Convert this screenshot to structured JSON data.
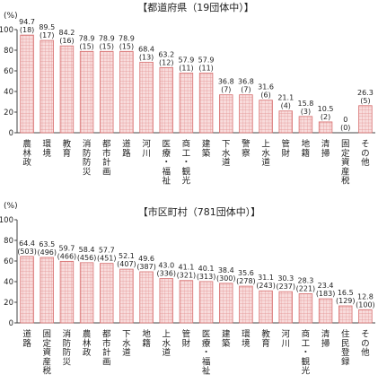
{
  "chart_data": [
    {
      "type": "bar",
      "title": "【都道府県（19団体中）】",
      "ylabel": "(%)",
      "ylim": [
        0,
        100
      ],
      "yticks": [
        0,
        20,
        40,
        60,
        80,
        100
      ],
      "categories": [
        "農林政",
        "環境",
        "教育",
        "消防防災",
        "都市計画",
        "道路",
        "河川",
        "医療・福祉",
        "商工・観光",
        "建築",
        "下水道",
        "警察",
        "上水道",
        "管財",
        "地籍",
        "清掃",
        "固定資産税",
        "その他"
      ],
      "values": [
        94.7,
        89.5,
        84.2,
        78.9,
        78.9,
        78.9,
        68.4,
        63.2,
        57.9,
        57.9,
        36.8,
        36.8,
        31.6,
        21.1,
        15.8,
        10.5,
        0,
        26.3
      ],
      "value_labels": [
        "94.7",
        "89.5",
        "84.2",
        "78.9",
        "78.9",
        "78.9",
        "68.4",
        "63.2",
        "57.9",
        "57.9",
        "36.8",
        "36.8",
        "31.6",
        "21.1",
        "15.8",
        "10.5",
        "0",
        "26.3"
      ],
      "counts": [
        "(18)",
        "(17)",
        "(16)",
        "(15)",
        "(15)",
        "(15)",
        "(13)",
        "(12)",
        "(11)",
        "(11)",
        "(7)",
        "(7)",
        "(6)",
        "(4)",
        "(3)",
        "(2)",
        "(0)",
        "(5)"
      ],
      "grid": false,
      "bar_color": "#e89494",
      "bar_fill": "#f6d2d2"
    },
    {
      "type": "bar",
      "title": "【市区町村（781団体中）】",
      "ylabel": "(%)",
      "ylim": [
        0,
        100
      ],
      "yticks": [
        0,
        20,
        40,
        60,
        80,
        100
      ],
      "categories": [
        "道路",
        "固定資産税",
        "消防防災",
        "農林政",
        "都市計画",
        "下水道",
        "地籍",
        "上水道",
        "管財",
        "医療・福祉",
        "建築",
        "環境",
        "教育",
        "河川",
        "商工・観光",
        "清掃",
        "住民登録",
        "その他"
      ],
      "values": [
        64.4,
        63.5,
        59.7,
        58.4,
        57.7,
        52.1,
        49.6,
        43.0,
        41.1,
        40.1,
        38.4,
        35.6,
        31.1,
        30.3,
        28.3,
        23.4,
        16.5,
        12.8
      ],
      "value_labels": [
        "64.4",
        "63.5",
        "59.7",
        "58.4",
        "57.7",
        "52.1",
        "49.6",
        "43.0",
        "41.1",
        "40.1",
        "38.4",
        "35.6",
        "31.1",
        "30.3",
        "28.3",
        "23.4",
        "16.5",
        "12.8"
      ],
      "counts": [
        "(503)",
        "(496)",
        "(466)",
        "(456)",
        "(451)",
        "(407)",
        "(387)",
        "(336)",
        "(321)",
        "(313)",
        "(300)",
        "(278)",
        "(243)",
        "(237)",
        "(221)",
        "(183)",
        "(129)",
        "(100)"
      ],
      "grid": false,
      "bar_color": "#e89494",
      "bar_fill": "#f6d2d2"
    }
  ]
}
